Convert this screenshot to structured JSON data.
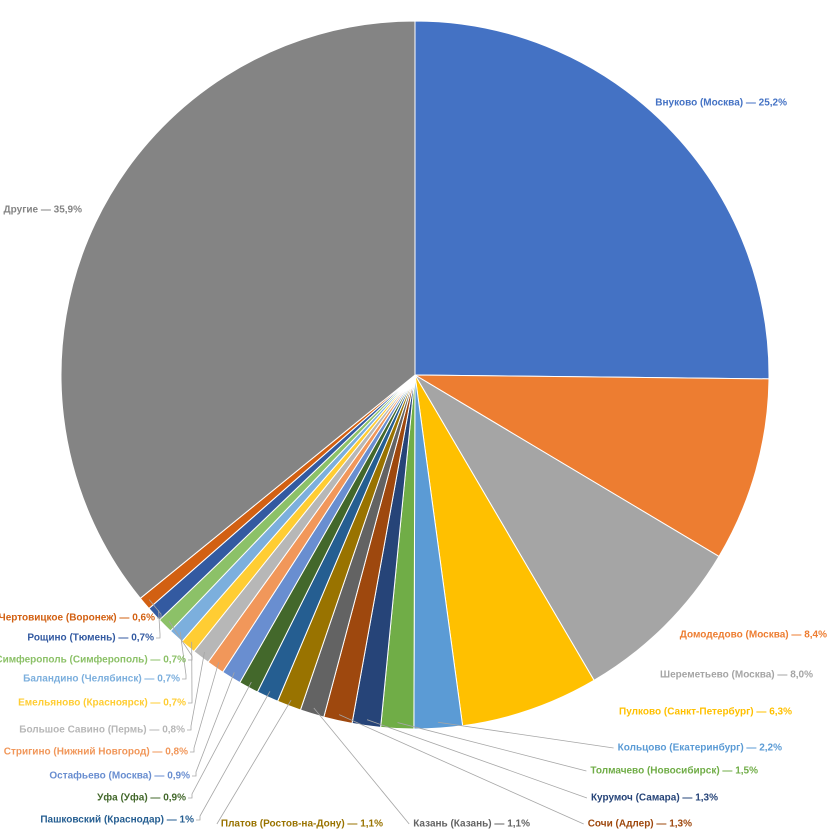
{
  "chart_data": {
    "type": "pie",
    "values": [
      25.2,
      8.4,
      8.0,
      6.3,
      2.2,
      1.5,
      1.3,
      1.3,
      1.1,
      1.1,
      1,
      0.9,
      0.9,
      0.8,
      0.8,
      0.7,
      0.7,
      0.7,
      0.7,
      0.6,
      35.9
    ],
    "value_labels": [
      "Внуково (Москва) — 25,2%",
      "Домодедово (Москва) — 8,4%",
      "Шереметьево (Москва) — 8,0%",
      "Пулково (Санкт-Петербург) — 6,3%",
      "Кольцово (Екатеринбург) — 2,2%",
      "Толмачево (Новосибирск) — 1,5%",
      "Курумоч (Самара) — 1,3%",
      "Сочи (Адлер) — 1,3%",
      "Казань (Казань) — 1,1%",
      "Платов (Ростов-на-Дону) — 1,1%",
      "Пашковский (Краснодар) — 1%",
      "Уфа (Уфа) — 0,9%",
      "Остафьево (Москва) — 0,9%",
      "Стригино (Нижний Новгород) — 0,8%",
      "Большое Савино (Пермь) — 0,8%",
      "Емельяново (Красноярск) — 0,7%",
      "Баландино (Челябинск) — 0,7%",
      "Симферополь (Симферополь) — 0,7%",
      "Рощино (Тюмень) — 0,7%",
      "Чертовицкое (Воронеж) — 0,6%",
      "Другие — 35,9%"
    ],
    "colors": [
      "#4472c4",
      "#ed7d31",
      "#a5a5a5",
      "#ffc000",
      "#5b9bd5",
      "#70ad47",
      "#264478",
      "#9e480e",
      "#636363",
      "#997300",
      "#255e91",
      "#43682b",
      "#698ed0",
      "#f1975a",
      "#b7b7b7",
      "#ffcd33",
      "#7cafdd",
      "#8cc168",
      "#335aa1",
      "#d26012",
      "#848484"
    ]
  }
}
